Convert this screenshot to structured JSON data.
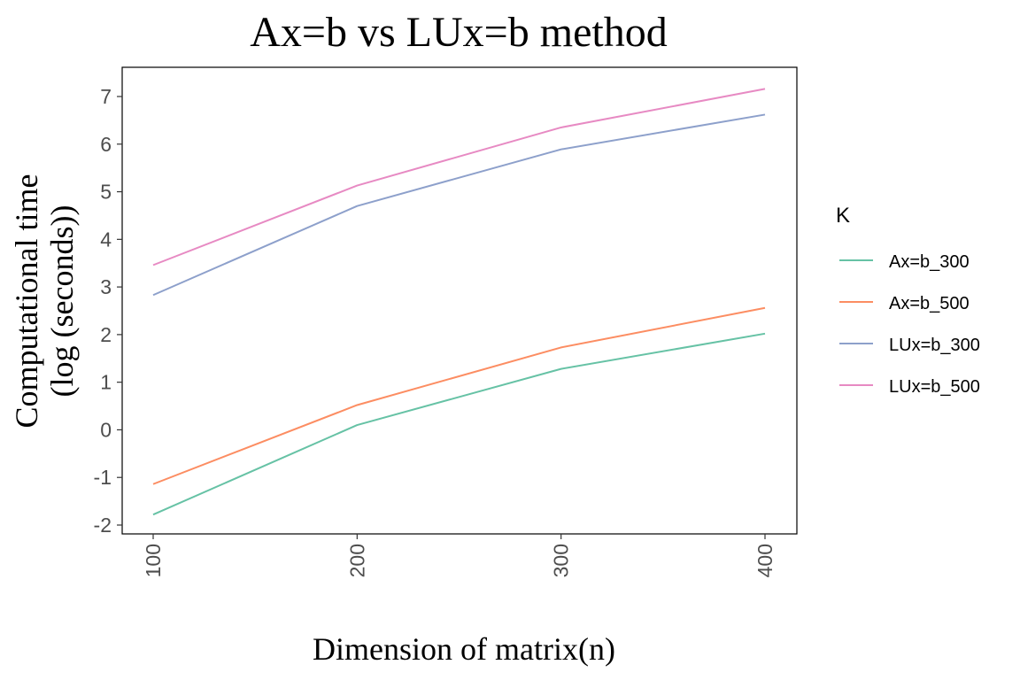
{
  "chart_data": {
    "type": "line",
    "title": "Ax=b vs LUx=b method",
    "xlabel": "Dimension of matrix(n)",
    "ylabel_lines": [
      "Computational time",
      "(log (seconds))"
    ],
    "x": [
      100,
      200,
      300,
      400
    ],
    "x_ticks": [
      "100",
      "200",
      "300",
      "400"
    ],
    "y_ticks": [
      -2,
      -1,
      0,
      1,
      2,
      3,
      4,
      5,
      6,
      7
    ],
    "xlim": [
      100,
      400
    ],
    "ylim": [
      -2,
      7
    ],
    "grid": false,
    "legend": {
      "title": "K",
      "placement": "right"
    },
    "series": [
      {
        "name": "Ax=b_300",
        "color": "#66c2a5",
        "values": [
          -1.78,
          0.1,
          1.28,
          2.02
        ]
      },
      {
        "name": "Ax=b_500",
        "color": "#fc8d62",
        "values": [
          -1.14,
          0.52,
          1.73,
          2.56
        ]
      },
      {
        "name": "LUx=b_300",
        "color": "#8da0cb",
        "values": [
          2.83,
          4.7,
          5.89,
          6.62
        ]
      },
      {
        "name": "LUx=b_500",
        "color": "#e78ac3",
        "values": [
          3.46,
          5.13,
          6.35,
          7.16
        ]
      }
    ]
  }
}
